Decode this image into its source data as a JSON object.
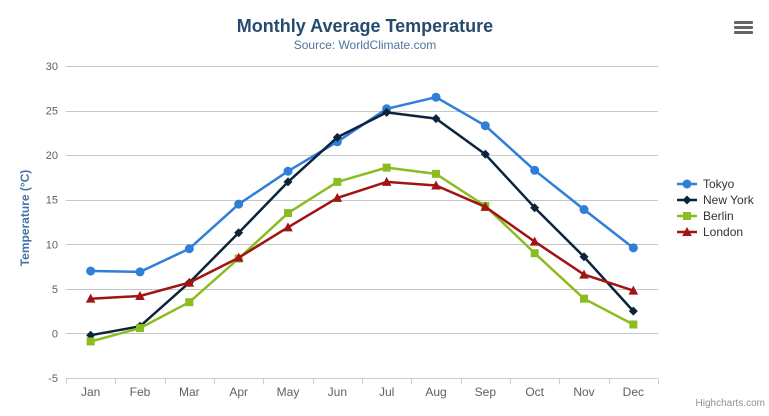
{
  "chart": {
    "credits": "Highcharts.com",
    "context_menu": "hamburger-menu"
  },
  "colors": {
    "title": "#274b6d",
    "subtitle": "#4d759e",
    "axis_label": "#606060",
    "axis_line": "#c0d0e0",
    "gridline": "#c6c6c6",
    "y_axis_title": "#4572a7",
    "legend_text": "#333333",
    "credits": "#909090"
  },
  "chart_data": {
    "type": "line",
    "title": "Monthly Average Temperature",
    "subtitle": "Source: WorldClimate.com",
    "categories": [
      "Jan",
      "Feb",
      "Mar",
      "Apr",
      "May",
      "Jun",
      "Jul",
      "Aug",
      "Sep",
      "Oct",
      "Nov",
      "Dec"
    ],
    "series": [
      {
        "name": "Tokyo",
        "color": "#2f7ed8",
        "marker": "circle",
        "values": [
          7.0,
          6.9,
          9.5,
          14.5,
          18.2,
          21.5,
          25.2,
          26.5,
          23.3,
          18.3,
          13.9,
          9.6
        ]
      },
      {
        "name": "New York",
        "color": "#0d233a",
        "marker": "diamond",
        "values": [
          -0.2,
          0.8,
          5.7,
          11.3,
          17.0,
          22.0,
          24.8,
          24.1,
          20.1,
          14.1,
          8.6,
          2.5
        ]
      },
      {
        "name": "Berlin",
        "color": "#8bbc21",
        "marker": "square",
        "values": [
          -0.9,
          0.6,
          3.5,
          8.4,
          13.5,
          17.0,
          18.6,
          17.9,
          14.3,
          9.0,
          3.9,
          1.0
        ]
      },
      {
        "name": "London",
        "color": "#a01414",
        "marker": "triangle",
        "values": [
          3.9,
          4.2,
          5.7,
          8.5,
          11.9,
          15.2,
          17.0,
          16.6,
          14.2,
          10.3,
          6.6,
          4.8
        ]
      }
    ],
    "xlabel": "",
    "ylabel": "Temperature (°C)",
    "ylim": [
      -5,
      30
    ],
    "yticks": [
      30,
      25,
      20,
      15,
      10,
      5,
      0,
      -5
    ],
    "grid": true,
    "legend_position": "right"
  }
}
